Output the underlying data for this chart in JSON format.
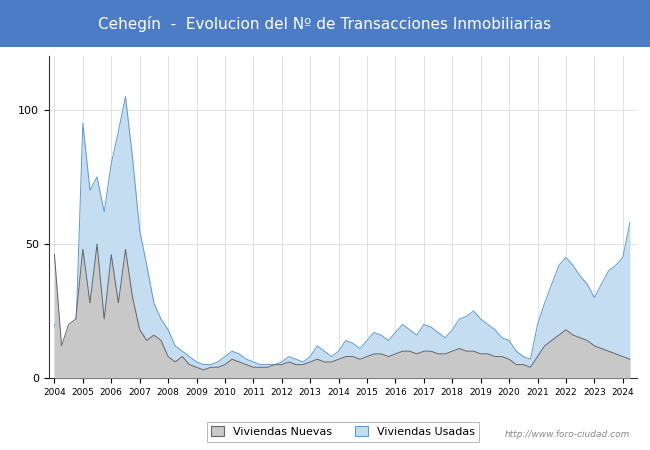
{
  "title": "Cehegín  -  Evolucion del Nº de Transacciones Inmobiliarias",
  "title_bg_color": "#4D7CC7",
  "title_text_color": "white",
  "title_fontsize": 11,
  "ylim": [
    0,
    120
  ],
  "watermark": "http://www.foro-ciudad.com",
  "legend_labels": [
    "Viviendas Nuevas",
    "Viviendas Usadas"
  ],
  "nuevas_line_color": "#666666",
  "usadas_line_color": "#5B9BD5",
  "nuevas_fill_color": "#c8c8c8",
  "usadas_fill_color": "#c5ddf0",
  "years": [
    2004,
    2005,
    2006,
    2007,
    2008,
    2009,
    2010,
    2011,
    2012,
    2013,
    2014,
    2015,
    2016,
    2017,
    2018,
    2019,
    2020,
    2021,
    2022,
    2023,
    2024
  ],
  "x_labels": [
    "2004",
    "2005",
    "2006",
    "2007",
    "2008",
    "2009",
    "2010",
    "2011",
    "2012",
    "2013",
    "2014",
    "2015",
    "2016",
    "2017",
    "2018",
    "2019",
    "2020",
    "2021",
    "2022",
    "2023",
    "2024"
  ],
  "nuevas_quarterly": [
    46,
    12,
    20,
    22,
    48,
    28,
    50,
    22,
    46,
    28,
    48,
    30,
    18,
    14,
    16,
    14,
    8,
    6,
    8,
    5,
    4,
    3,
    4,
    4,
    5,
    7,
    6,
    5,
    4,
    4,
    4,
    5,
    5,
    6,
    5,
    5,
    6,
    7,
    6,
    6,
    7,
    8,
    8,
    7,
    8,
    9,
    9,
    8,
    9,
    10,
    10,
    9,
    10,
    10,
    9,
    9,
    10,
    11,
    10,
    10,
    9,
    9,
    8,
    8,
    7,
    5,
    5,
    4,
    8,
    12,
    14,
    16,
    18,
    16,
    15,
    14,
    12,
    11,
    10,
    9,
    8,
    7
  ],
  "usadas_quarterly": [
    20,
    10,
    14,
    16,
    95,
    70,
    75,
    62,
    80,
    92,
    105,
    82,
    55,
    42,
    28,
    22,
    18,
    12,
    10,
    8,
    6,
    5,
    5,
    6,
    8,
    10,
    9,
    7,
    6,
    5,
    5,
    5,
    6,
    8,
    7,
    6,
    8,
    12,
    10,
    8,
    10,
    14,
    13,
    11,
    14,
    17,
    16,
    14,
    17,
    20,
    18,
    16,
    20,
    19,
    17,
    15,
    18,
    22,
    23,
    25,
    22,
    20,
    18,
    15,
    14,
    10,
    8,
    7,
    20,
    28,
    35,
    42,
    45,
    42,
    38,
    35,
    30,
    35,
    40,
    42,
    45,
    58
  ]
}
